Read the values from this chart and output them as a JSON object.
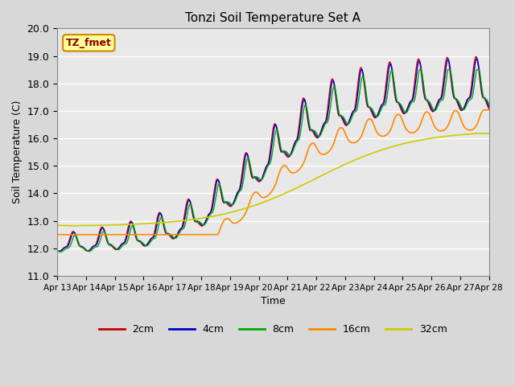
{
  "title": "Tonzi Soil Temperature Set A",
  "xlabel": "Time",
  "ylabel": "Soil Temperature (C)",
  "ylim": [
    11.0,
    20.0
  ],
  "yticks": [
    11.0,
    12.0,
    13.0,
    14.0,
    15.0,
    16.0,
    17.0,
    18.0,
    19.0,
    20.0
  ],
  "xtick_labels": [
    "Apr 13",
    "Apr 14",
    "Apr 15",
    "Apr 16",
    "Apr 17",
    "Apr 18",
    "Apr 19",
    "Apr 20",
    "Apr 21",
    "Apr 22",
    "Apr 23",
    "Apr 24",
    "Apr 25",
    "Apr 26",
    "Apr 27",
    "Apr 28"
  ],
  "colors": {
    "2cm": "#cc0000",
    "4cm": "#0000cc",
    "8cm": "#00aa00",
    "16cm": "#ff8800",
    "32cm": "#cccc00"
  },
  "legend_label": "TZ_fmet",
  "axes_facecolor": "#e8e8e8",
  "grid_color": "#ffffff",
  "series_labels": [
    "2cm",
    "4cm",
    "8cm",
    "16cm",
    "32cm"
  ]
}
